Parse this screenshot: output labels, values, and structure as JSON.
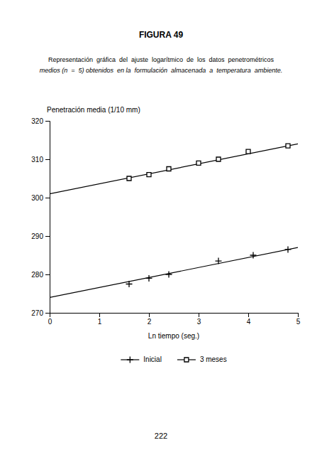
{
  "chart_data": {
    "type": "scatter",
    "title": "FIGURA 49",
    "subtitle": [
      "Representación  gráfica  del  ajuste  logarítmico  de  los  datos  penetrométricos",
      "medios (n  =  5) obtenidos  en la  formulación  almacenada  a  temperatura  ambiente."
    ],
    "annotations": [
      "222"
    ],
    "y_label": "Penetración media (1/10 mm)",
    "x_label": "Ln tiempo (seg.)",
    "xlim": [
      0,
      5
    ],
    "ylim": [
      270,
      320
    ],
    "xticks": [
      0,
      1,
      2,
      3,
      4,
      5
    ],
    "yticks": [
      270,
      280,
      290,
      300,
      310,
      320
    ],
    "grid": false,
    "legend": "bottom",
    "series": [
      {
        "name": "Inicial",
        "marker": "plus",
        "color": "#000000",
        "x": [
          1.6,
          2.0,
          2.4,
          3.4,
          4.1,
          4.8
        ],
        "values": [
          277.5,
          279.0,
          280.0,
          283.5,
          285.0,
          286.5
        ],
        "fit_x": [
          0,
          5
        ],
        "fit_y": [
          274.0,
          287.0
        ]
      },
      {
        "name": "3 meses",
        "marker": "square",
        "color": "#000000",
        "x": [
          1.6,
          2.0,
          2.4,
          3.0,
          3.4,
          4.0,
          4.8
        ],
        "values": [
          305.0,
          306.0,
          307.5,
          309.0,
          310.0,
          312.0,
          313.5
        ],
        "fit_x": [
          0,
          5
        ],
        "fit_y": [
          301.0,
          314.0
        ]
      }
    ]
  }
}
